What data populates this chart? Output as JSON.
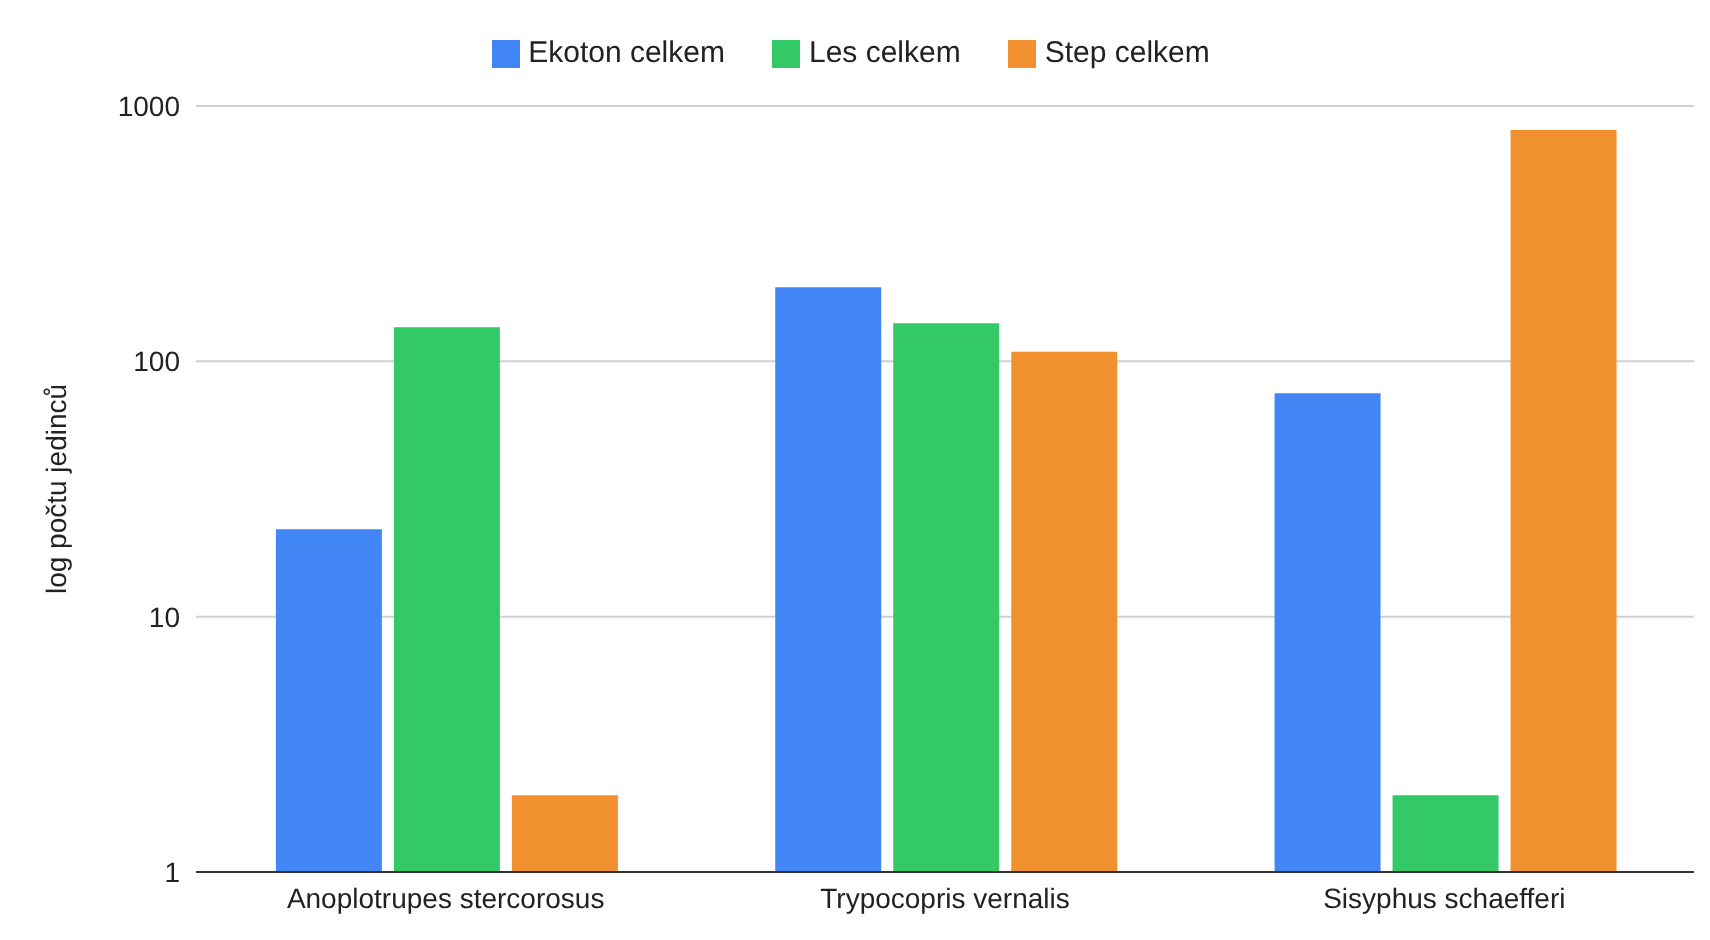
{
  "chart_data": {
    "type": "bar",
    "ylabel": "log počtu jedinců",
    "categories": [
      "Anoplotrupes stercorosus",
      "Trypocopris vernalis",
      "Sisyphus schaefferi"
    ],
    "series": [
      {
        "name": "Ekoton celkem",
        "color": "#4285f4",
        "values": [
          22,
          195,
          75
        ]
      },
      {
        "name": "Les celkem",
        "color": "#34c967",
        "values": [
          136,
          141,
          2
        ]
      },
      {
        "name": "Step celkem",
        "color": "#f0902e",
        "values": [
          2,
          109,
          806
        ]
      }
    ],
    "log": true,
    "ylim": [
      1,
      1000
    ],
    "yticks": [
      1,
      10,
      100,
      1000
    ],
    "grid": "y",
    "legend": "top"
  }
}
